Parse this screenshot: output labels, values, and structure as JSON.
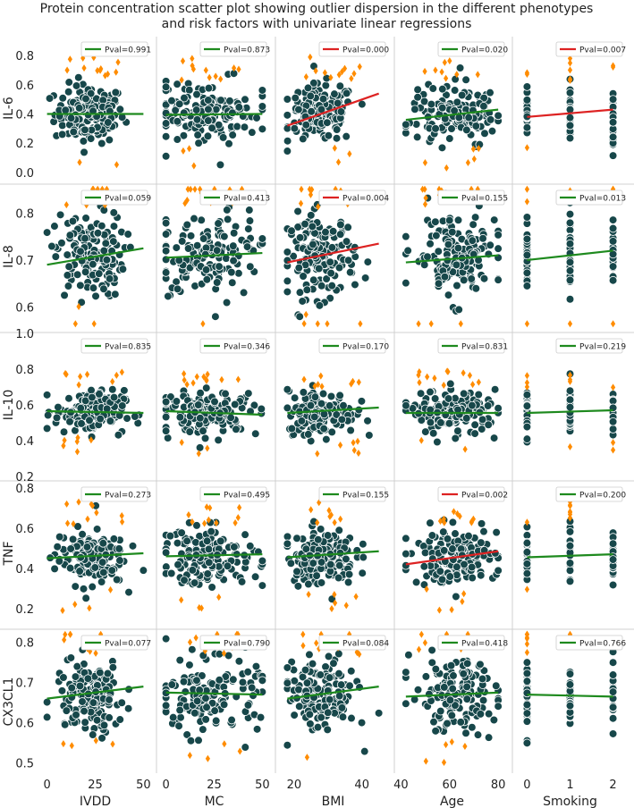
{
  "chart_data": {
    "type": "scatter",
    "title": "Protein concentration scatter plot showing outlier dispersion in the different phenotypes and risk factors with univariate linear regressions",
    "title_lines": [
      "Protein concentration scatter plot showing outlier dispersion in the different phenotypes",
      "and risk factors with univariate linear regressions"
    ],
    "legend_placement": "top-right",
    "grid": false,
    "colors": {
      "points": "#17474a",
      "outliers": "#ff8c00",
      "significant": "#dd2222",
      "not_significant": "#1e8a1e"
    },
    "columns": [
      {
        "xlabel": "IVDD",
        "xticks": [
          0,
          25,
          50
        ],
        "xlim": [
          -4,
          54
        ]
      },
      {
        "xlabel": "MC",
        "xticks": [
          0,
          25,
          50
        ],
        "xlim": [
          -4,
          54
        ]
      },
      {
        "xlabel": "BMI",
        "xticks": [
          20,
          40
        ],
        "xlim": [
          15,
          48
        ]
      },
      {
        "xlabel": "Age",
        "xticks": [
          40,
          60,
          80
        ],
        "xlim": [
          38,
          84
        ]
      },
      {
        "xlabel": "Smoking",
        "xticks": [
          0,
          1,
          2
        ],
        "xlim": [
          -0.3,
          2.3
        ]
      }
    ],
    "rows": [
      {
        "ylabel": "IL-6",
        "yticks": [
          "0.0",
          "0.2",
          "0.4",
          "0.6",
          "0.8"
        ],
        "ylim": [
          -0.05,
          0.93
        ],
        "center": 0.4,
        "spread": 0.1,
        "panels": [
          {
            "pval": "Pval=0.991",
            "sig": false,
            "line": [
              [
                0,
                0.4
              ],
              [
                50,
                0.4
              ]
            ]
          },
          {
            "pval": "Pval=0.873",
            "sig": false,
            "line": [
              [
                0,
                0.395
              ],
              [
                50,
                0.4
              ]
            ]
          },
          {
            "pval": "Pval=0.000",
            "sig": true,
            "line": [
              [
                18,
                0.32
              ],
              [
                45,
                0.54
              ]
            ]
          },
          {
            "pval": "Pval=0.020",
            "sig": false,
            "line": [
              [
                42,
                0.36
              ],
              [
                80,
                0.43
              ]
            ]
          },
          {
            "pval": "Pval=0.007",
            "sig": true,
            "line": [
              [
                0,
                0.38
              ],
              [
                2,
                0.43
              ]
            ]
          }
        ]
      },
      {
        "ylabel": "IL-8",
        "yticks": [
          "0.6",
          "0.7",
          "0.8"
        ],
        "ylim": [
          0.555,
          0.86
        ],
        "center": 0.71,
        "spread": 0.045,
        "panels": [
          {
            "pval": "Pval=0.059",
            "sig": false,
            "line": [
              [
                0,
                0.69
              ],
              [
                50,
                0.725
              ]
            ]
          },
          {
            "pval": "Pval=0.413",
            "sig": false,
            "line": [
              [
                0,
                0.705
              ],
              [
                50,
                0.715
              ]
            ]
          },
          {
            "pval": "Pval=0.004",
            "sig": true,
            "line": [
              [
                18,
                0.695
              ],
              [
                45,
                0.735
              ]
            ]
          },
          {
            "pval": "Pval=0.155",
            "sig": false,
            "line": [
              [
                42,
                0.695
              ],
              [
                80,
                0.71
              ]
            ]
          },
          {
            "pval": "Pval=0.013",
            "sig": false,
            "line": [
              [
                0,
                0.7
              ],
              [
                2,
                0.72
              ]
            ]
          }
        ]
      },
      {
        "ylabel": "IL-10",
        "yticks": [
          "0.2",
          "0.4",
          "0.6",
          "0.8",
          "1.0"
        ],
        "ylim": [
          0.2,
          1.0
        ],
        "center": 0.56,
        "spread": 0.06,
        "panels": [
          {
            "pval": "Pval=0.835",
            "sig": false,
            "line": [
              [
                0,
                0.565
              ],
              [
                50,
                0.555
              ]
            ]
          },
          {
            "pval": "Pval=0.346",
            "sig": false,
            "line": [
              [
                0,
                0.565
              ],
              [
                50,
                0.545
              ]
            ]
          },
          {
            "pval": "Pval=0.170",
            "sig": false,
            "line": [
              [
                18,
                0.555
              ],
              [
                45,
                0.585
              ]
            ]
          },
          {
            "pval": "Pval=0.831",
            "sig": false,
            "line": [
              [
                42,
                0.555
              ],
              [
                80,
                0.555
              ]
            ]
          },
          {
            "pval": "Pval=0.219",
            "sig": false,
            "line": [
              [
                0,
                0.555
              ],
              [
                2,
                0.57
              ]
            ]
          }
        ]
      },
      {
        "ylabel": "TNF",
        "yticks": [
          "0.2",
          "0.4",
          "0.6",
          "0.8"
        ],
        "ylim": [
          0.12,
          0.83
        ],
        "center": 0.46,
        "spread": 0.07,
        "panels": [
          {
            "pval": "Pval=0.273",
            "sig": false,
            "line": [
              [
                0,
                0.45
              ],
              [
                50,
                0.475
              ]
            ]
          },
          {
            "pval": "Pval=0.495",
            "sig": false,
            "line": [
              [
                0,
                0.46
              ],
              [
                50,
                0.47
              ]
            ]
          },
          {
            "pval": "Pval=0.155",
            "sig": false,
            "line": [
              [
                18,
                0.455
              ],
              [
                45,
                0.485
              ]
            ]
          },
          {
            "pval": "Pval=0.002",
            "sig": true,
            "line": [
              [
                42,
                0.42
              ],
              [
                80,
                0.485
              ]
            ]
          },
          {
            "pval": "Pval=0.200",
            "sig": false,
            "line": [
              [
                0,
                0.455
              ],
              [
                2,
                0.47
              ]
            ]
          }
        ]
      },
      {
        "ylabel": "CX3CL1",
        "yticks": [
          "0.5",
          "0.6",
          "0.7",
          "0.8"
        ],
        "ylim": [
          0.475,
          0.83
        ],
        "center": 0.665,
        "spread": 0.045,
        "panels": [
          {
            "pval": "Pval=0.077",
            "sig": false,
            "line": [
              [
                0,
                0.66
              ],
              [
                50,
                0.69
              ]
            ]
          },
          {
            "pval": "Pval=0.790",
            "sig": false,
            "line": [
              [
                0,
                0.675
              ],
              [
                50,
                0.67
              ]
            ]
          },
          {
            "pval": "Pval=0.084",
            "sig": false,
            "line": [
              [
                18,
                0.66
              ],
              [
                45,
                0.69
              ]
            ]
          },
          {
            "pval": "Pval=0.418",
            "sig": false,
            "line": [
              [
                42,
                0.665
              ],
              [
                80,
                0.675
              ]
            ]
          },
          {
            "pval": "Pval=0.766",
            "sig": false,
            "line": [
              [
                0,
                0.67
              ],
              [
                2,
                0.665
              ]
            ]
          }
        ]
      }
    ]
  }
}
